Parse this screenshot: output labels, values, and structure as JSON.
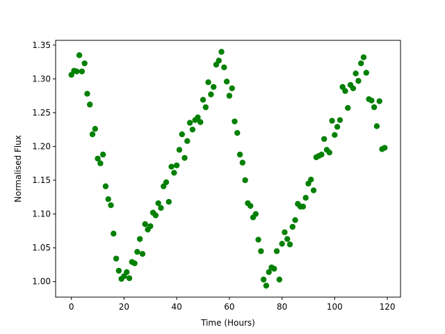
{
  "chart_data": {
    "type": "scatter",
    "xlabel": "Time (Hours)",
    "ylabel": "Normalised Flux",
    "xlim": [
      -6,
      125
    ],
    "ylim": [
      0.977,
      1.357
    ],
    "xticks": [
      0,
      20,
      40,
      60,
      80,
      100,
      120
    ],
    "yticks": [
      1.0,
      1.05,
      1.1,
      1.15,
      1.2,
      1.25,
      1.3,
      1.35
    ],
    "xtick_labels": [
      "0",
      "20",
      "40",
      "60",
      "80",
      "100",
      "120"
    ],
    "ytick_labels": [
      "1.00",
      "1.05",
      "1.10",
      "1.15",
      "1.20",
      "1.25",
      "1.30",
      "1.35"
    ],
    "grid": false,
    "color": "#008000",
    "series": [
      {
        "points": [
          [
            0,
            1.306
          ],
          [
            1,
            1.312
          ],
          [
            2,
            1.311
          ],
          [
            3,
            1.335
          ],
          [
            4,
            1.311
          ],
          [
            5,
            1.323
          ],
          [
            6,
            1.278
          ],
          [
            7,
            1.262
          ],
          [
            8,
            1.218
          ],
          [
            9,
            1.226
          ],
          [
            10,
            1.182
          ],
          [
            11,
            1.175
          ],
          [
            12,
            1.188
          ],
          [
            13,
            1.141
          ],
          [
            14,
            1.122
          ],
          [
            15,
            1.113
          ],
          [
            16,
            1.071
          ],
          [
            17,
            1.034
          ],
          [
            18,
            1.016
          ],
          [
            19,
            1.004
          ],
          [
            20,
            1.008
          ],
          [
            21,
            1.014
          ],
          [
            22,
            1.005
          ],
          [
            23,
            1.029
          ],
          [
            24,
            1.027
          ],
          [
            25,
            1.044
          ],
          [
            26,
            1.063
          ],
          [
            27,
            1.041
          ],
          [
            28,
            1.085
          ],
          [
            29,
            1.077
          ],
          [
            30,
            1.082
          ],
          [
            31,
            1.102
          ],
          [
            32,
            1.098
          ],
          [
            33,
            1.116
          ],
          [
            34,
            1.109
          ],
          [
            35,
            1.141
          ],
          [
            36,
            1.147
          ],
          [
            37,
            1.118
          ],
          [
            38,
            1.17
          ],
          [
            39,
            1.161
          ],
          [
            40,
            1.172
          ],
          [
            41,
            1.195
          ],
          [
            42,
            1.218
          ],
          [
            43,
            1.183
          ],
          [
            44,
            1.208
          ],
          [
            45,
            1.235
          ],
          [
            46,
            1.225
          ],
          [
            47,
            1.239
          ],
          [
            48,
            1.243
          ],
          [
            49,
            1.236
          ],
          [
            50,
            1.269
          ],
          [
            51,
            1.258
          ],
          [
            52,
            1.295
          ],
          [
            53,
            1.277
          ],
          [
            54,
            1.288
          ],
          [
            55,
            1.321
          ],
          [
            56,
            1.327
          ],
          [
            57,
            1.34
          ],
          [
            58,
            1.317
          ],
          [
            59,
            1.296
          ],
          [
            60,
            1.275
          ],
          [
            61,
            1.286
          ],
          [
            62,
            1.237
          ],
          [
            63,
            1.22
          ],
          [
            64,
            1.188
          ],
          [
            65,
            1.176
          ],
          [
            66,
            1.15
          ],
          [
            67,
            1.116
          ],
          [
            68,
            1.112
          ],
          [
            69,
            1.095
          ],
          [
            70,
            1.1
          ],
          [
            71,
            1.062
          ],
          [
            72,
            1.045
          ],
          [
            73,
            1.003
          ],
          [
            74,
            0.994
          ],
          [
            75,
            1.014
          ],
          [
            76,
            1.021
          ],
          [
            77,
            1.019
          ],
          [
            78,
            1.045
          ],
          [
            79,
            1.003
          ],
          [
            80,
            1.056
          ],
          [
            81,
            1.073
          ],
          [
            82,
            1.063
          ],
          [
            83,
            1.055
          ],
          [
            84,
            1.081
          ],
          [
            85,
            1.091
          ],
          [
            86,
            1.115
          ],
          [
            87,
            1.111
          ],
          [
            88,
            1.111
          ],
          [
            89,
            1.124
          ],
          [
            90,
            1.145
          ],
          [
            91,
            1.151
          ],
          [
            92,
            1.135
          ],
          [
            93,
            1.184
          ],
          [
            94,
            1.186
          ],
          [
            95,
            1.188
          ],
          [
            96,
            1.211
          ],
          [
            97,
            1.195
          ],
          [
            98,
            1.191
          ],
          [
            99,
            1.238
          ],
          [
            100,
            1.217
          ],
          [
            101,
            1.229
          ],
          [
            102,
            1.239
          ],
          [
            103,
            1.288
          ],
          [
            104,
            1.282
          ],
          [
            105,
            1.257
          ],
          [
            106,
            1.291
          ],
          [
            107,
            1.286
          ],
          [
            108,
            1.308
          ],
          [
            109,
            1.297
          ],
          [
            110,
            1.323
          ],
          [
            111,
            1.332
          ],
          [
            112,
            1.309
          ],
          [
            113,
            1.27
          ],
          [
            114,
            1.268
          ],
          [
            115,
            1.258
          ],
          [
            116,
            1.23
          ],
          [
            117,
            1.267
          ],
          [
            118,
            1.196
          ],
          [
            119,
            1.198
          ]
        ]
      }
    ]
  }
}
